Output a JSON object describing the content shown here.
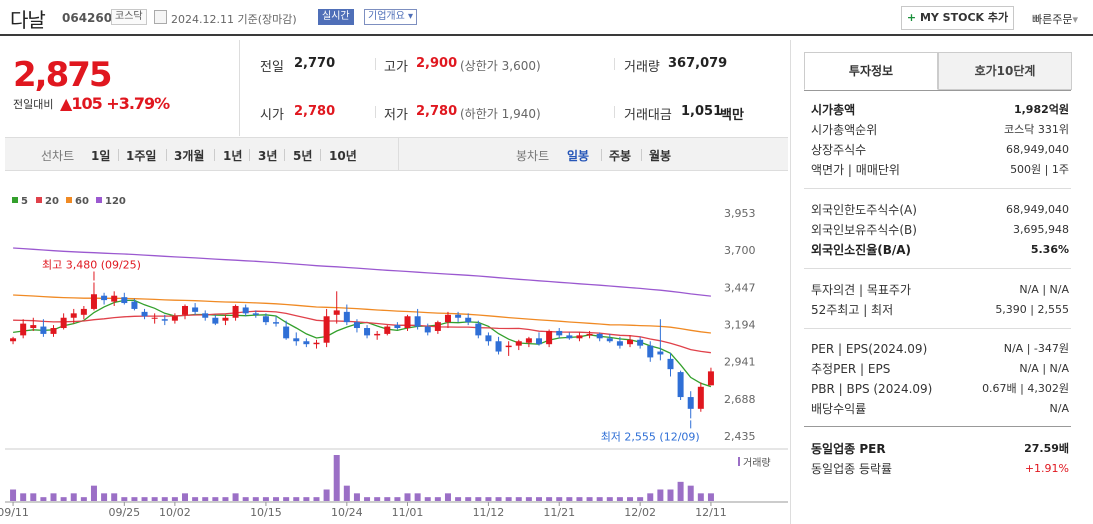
{
  "header": {
    "stock_name": "다날",
    "stock_code": "064260",
    "market": "코스닥",
    "date": "2024.12.11 기준(장마감)",
    "realtime": "실시간",
    "overview": "기업개요",
    "mystock": "MY STOCK 추가",
    "quick_order": "빠른주문"
  },
  "price": {
    "current": "2,875",
    "change_label": "전일대비",
    "change": "105",
    "change_pct": "+3.79%"
  },
  "summary": {
    "prev_label": "전일",
    "prev": "2,770",
    "high_label": "고가",
    "high": "2,900",
    "upper_limit": "(상한가 3,600)",
    "volume_label": "거래량",
    "volume": "367,079",
    "open_label": "시가",
    "open": "2,780",
    "low_label": "저가",
    "low": "2,780",
    "lower_limit": "(하한가 1,940)",
    "amount_label": "거래대금",
    "amount": "1,051",
    "amount_unit": "백만"
  },
  "periods": {
    "line_label": "선차트",
    "line_items": [
      "1일",
      "1주일",
      "3개월",
      "1년",
      "3년",
      "5년",
      "10년"
    ],
    "candle_label": "봉차트",
    "candle_items": [
      "일봉",
      "주봉",
      "월봉"
    ],
    "selected_candle": "일봉"
  },
  "chart_data": {
    "type": "candlestick",
    "legend": [
      "5",
      "20",
      "60",
      "120"
    ],
    "colors": {
      "ma5": "#33a02c",
      "ma20": "#e0414a",
      "ma60": "#f08a24",
      "ma120": "#9b59d0",
      "up": "#e0171f",
      "down": "#2f6fd6"
    },
    "y_ticks": [
      3953,
      3700,
      3447,
      3194,
      2941,
      2688,
      2435
    ],
    "x_ticks": [
      "09/11",
      "09/25",
      "10/02",
      "10/15",
      "10/24",
      "11/01",
      "11/12",
      "11/21",
      "12/02",
      "12/11"
    ],
    "ylim": [
      2435,
      3953
    ],
    "max_label": "최고 3,480 (09/25)",
    "min_label": "최저 2,555 (12/09)",
    "volume_label": "거래량",
    "candles": [
      [
        3080,
        3110,
        3060,
        3100
      ],
      [
        3120,
        3230,
        3100,
        3200
      ],
      [
        3170,
        3240,
        3150,
        3190
      ],
      [
        3180,
        3230,
        3110,
        3130
      ],
      [
        3130,
        3190,
        3110,
        3170
      ],
      [
        3170,
        3270,
        3160,
        3240
      ],
      [
        3240,
        3300,
        3200,
        3270
      ],
      [
        3260,
        3320,
        3230,
        3300
      ],
      [
        3300,
        3480,
        3290,
        3400
      ],
      [
        3390,
        3410,
        3330,
        3360
      ],
      [
        3350,
        3420,
        3320,
        3390
      ],
      [
        3380,
        3410,
        3330,
        3340
      ],
      [
        3350,
        3370,
        3290,
        3300
      ],
      [
        3280,
        3300,
        3230,
        3250
      ],
      [
        3240,
        3270,
        3200,
        3240
      ],
      [
        3230,
        3260,
        3190,
        3220
      ],
      [
        3220,
        3270,
        3200,
        3250
      ],
      [
        3260,
        3330,
        3230,
        3320
      ],
      [
        3310,
        3340,
        3260,
        3280
      ],
      [
        3270,
        3290,
        3220,
        3240
      ],
      [
        3240,
        3260,
        3190,
        3200
      ],
      [
        3220,
        3260,
        3190,
        3240
      ],
      [
        3240,
        3330,
        3220,
        3320
      ],
      [
        3310,
        3330,
        3250,
        3270
      ],
      [
        3270,
        3290,
        3240,
        3260
      ],
      [
        3250,
        3270,
        3190,
        3210
      ],
      [
        3210,
        3250,
        3180,
        3200
      ],
      [
        3180,
        3220,
        3090,
        3100
      ],
      [
        3100,
        3140,
        3050,
        3080
      ],
      [
        3080,
        3100,
        3040,
        3060
      ],
      [
        3060,
        3090,
        3030,
        3070
      ],
      [
        3070,
        3300,
        3040,
        3250
      ],
      [
        3260,
        3420,
        3200,
        3290
      ],
      [
        3280,
        3330,
        3190,
        3210
      ],
      [
        3210,
        3230,
        3140,
        3170
      ],
      [
        3170,
        3190,
        3100,
        3120
      ],
      [
        3120,
        3150,
        3090,
        3130
      ],
      [
        3130,
        3190,
        3120,
        3180
      ],
      [
        3190,
        3210,
        3160,
        3170
      ],
      [
        3170,
        3260,
        3150,
        3250
      ],
      [
        3250,
        3300,
        3160,
        3180
      ],
      [
        3180,
        3200,
        3120,
        3140
      ],
      [
        3150,
        3220,
        3130,
        3210
      ],
      [
        3210,
        3280,
        3170,
        3260
      ],
      [
        3260,
        3280,
        3210,
        3240
      ],
      [
        3240,
        3270,
        3190,
        3210
      ],
      [
        3200,
        3220,
        3100,
        3120
      ],
      [
        3120,
        3140,
        3050,
        3080
      ],
      [
        3080,
        3110,
        2990,
        3010
      ],
      [
        3040,
        3080,
        2980,
        3050
      ],
      [
        3050,
        3090,
        3020,
        3080
      ],
      [
        3070,
        3110,
        3040,
        3100
      ],
      [
        3100,
        3140,
        3050,
        3060
      ],
      [
        3060,
        3160,
        3040,
        3150
      ],
      [
        3150,
        3170,
        3100,
        3120
      ],
      [
        3120,
        3140,
        3090,
        3100
      ],
      [
        3100,
        3140,
        3080,
        3120
      ],
      [
        3120,
        3150,
        3100,
        3130
      ],
      [
        3130,
        3140,
        3080,
        3100
      ],
      [
        3100,
        3130,
        3070,
        3080
      ],
      [
        3080,
        3110,
        3030,
        3050
      ],
      [
        3060,
        3120,
        3040,
        3090
      ],
      [
        3090,
        3110,
        3030,
        3050
      ],
      [
        3050,
        3080,
        2940,
        2970
      ],
      [
        3010,
        3230,
        2950,
        2990
      ],
      [
        2960,
        3000,
        2840,
        2890
      ],
      [
        2870,
        2880,
        2680,
        2700
      ],
      [
        2700,
        2740,
        2555,
        2620
      ],
      [
        2620,
        2800,
        2600,
        2770
      ],
      [
        2780,
        2900,
        2780,
        2875
      ]
    ],
    "volumes": [
      3,
      2,
      2,
      1,
      2,
      1,
      2,
      1,
      4,
      2,
      2,
      1,
      1,
      1,
      1,
      1,
      1,
      2,
      1,
      1,
      1,
      1,
      2,
      1,
      1,
      1,
      1,
      1,
      1,
      1,
      1,
      3,
      12,
      4,
      2,
      1,
      1,
      1,
      1,
      2,
      2,
      1,
      1,
      2,
      1,
      1,
      1,
      1,
      1,
      1,
      1,
      1,
      1,
      1,
      1,
      1,
      1,
      1,
      1,
      1,
      1,
      1,
      1,
      2,
      3,
      3,
      5,
      4,
      2,
      2
    ]
  },
  "panel": {
    "tab1": "투자정보",
    "tab2": "호가10단계",
    "rows1": [
      {
        "l": "시가총액",
        "r": "1,982억원",
        "bold": true
      },
      {
        "l": "시가총액순위",
        "r": "코스닥 331위"
      },
      {
        "l": "상장주식수",
        "r": "68,949,040"
      },
      {
        "l": "액면가 | 매매단위",
        "r": "500원 | 1주"
      }
    ],
    "rows2": [
      {
        "l": "외국인한도주식수(A)",
        "r": "68,949,040"
      },
      {
        "l": "외국인보유주식수(B)",
        "r": "3,695,948"
      },
      {
        "l": "외국인소진율(B/A)",
        "r": "5.36%",
        "bold": true
      }
    ],
    "rows3": [
      {
        "l": "투자의견 | 목표주가",
        "r": "N/A | N/A"
      },
      {
        "l": "52주최고 | 최저",
        "r": "5,390 | 2,555"
      }
    ],
    "rows4": [
      {
        "l": "PER | EPS(2024.09)",
        "r": "N/A | -347원"
      },
      {
        "l": "추정PER | EPS",
        "r": "N/A | N/A"
      },
      {
        "l": "PBR | BPS (2024.09)",
        "r": "0.67배 | 4,302원"
      },
      {
        "l": "배당수익률",
        "r": "N/A"
      }
    ],
    "rows5": [
      {
        "l": "동일업종 PER",
        "r": "27.59배",
        "bold": true
      },
      {
        "l": "동일업종 등락률",
        "r": "+1.91%",
        "red": true
      }
    ]
  }
}
